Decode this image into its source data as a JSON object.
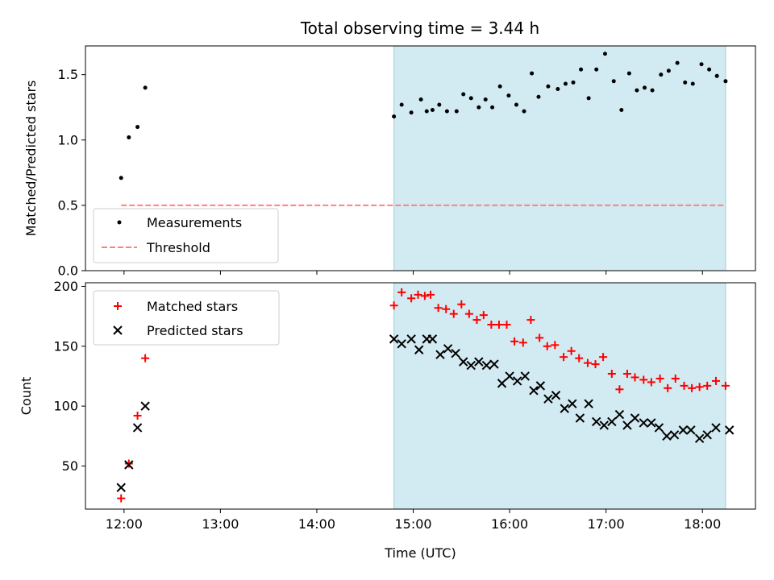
{
  "chart_data": {
    "title": "Total observing time = 3.44 h",
    "xlabel": "Time (UTC)",
    "x_unit": "hours UTC",
    "x_ticks": [
      12,
      13,
      14,
      15,
      16,
      17,
      18
    ],
    "x_tick_labels": [
      "12:00",
      "13:00",
      "14:00",
      "15:00",
      "16:00",
      "17:00",
      "18:00"
    ],
    "xlim": [
      11.6,
      18.55
    ],
    "shaded_interval": [
      14.8,
      18.24
    ],
    "shade_color": "#add8e6",
    "panels": [
      {
        "type": "scatter",
        "ylabel": "Matched/Predicted stars",
        "ylim": [
          0,
          1.72
        ],
        "y_ticks": [
          0.0,
          0.5,
          1.0,
          1.5
        ],
        "y_tick_labels": [
          "0.0",
          "0.5",
          "1.0",
          "1.5"
        ],
        "legend_position": "lower-left",
        "threshold": {
          "name": "Threshold",
          "y": 0.5,
          "x_start": 11.97,
          "x_end": 18.24,
          "color": "#ff8080",
          "style": "dashed"
        },
        "series": [
          {
            "name": "Measurements",
            "marker": "dot",
            "color": "#000000",
            "points": [
              [
                11.97,
                0.71
              ],
              [
                12.05,
                1.02
              ],
              [
                12.14,
                1.1
              ],
              [
                12.22,
                1.4
              ],
              [
                14.8,
                1.18
              ],
              [
                14.88,
                1.27
              ],
              [
                14.98,
                1.21
              ],
              [
                15.08,
                1.31
              ],
              [
                15.14,
                1.22
              ],
              [
                15.2,
                1.23
              ],
              [
                15.27,
                1.27
              ],
              [
                15.35,
                1.22
              ],
              [
                15.45,
                1.22
              ],
              [
                15.52,
                1.35
              ],
              [
                15.6,
                1.32
              ],
              [
                15.68,
                1.25
              ],
              [
                15.75,
                1.31
              ],
              [
                15.82,
                1.25
              ],
              [
                15.9,
                1.41
              ],
              [
                15.99,
                1.34
              ],
              [
                16.07,
                1.27
              ],
              [
                16.15,
                1.22
              ],
              [
                16.23,
                1.51
              ],
              [
                16.3,
                1.33
              ],
              [
                16.4,
                1.41
              ],
              [
                16.5,
                1.39
              ],
              [
                16.58,
                1.43
              ],
              [
                16.66,
                1.44
              ],
              [
                16.74,
                1.54
              ],
              [
                16.82,
                1.32
              ],
              [
                16.9,
                1.54
              ],
              [
                16.99,
                1.66
              ],
              [
                17.08,
                1.45
              ],
              [
                17.16,
                1.23
              ],
              [
                17.24,
                1.51
              ],
              [
                17.32,
                1.38
              ],
              [
                17.4,
                1.4
              ],
              [
                17.48,
                1.38
              ],
              [
                17.57,
                1.5
              ],
              [
                17.65,
                1.53
              ],
              [
                17.74,
                1.59
              ],
              [
                17.82,
                1.44
              ],
              [
                17.9,
                1.43
              ],
              [
                17.99,
                1.58
              ],
              [
                18.07,
                1.54
              ],
              [
                18.15,
                1.49
              ],
              [
                18.24,
                1.45
              ]
            ]
          }
        ]
      },
      {
        "type": "scatter",
        "ylabel": "Count",
        "ylim": [
          14,
          203
        ],
        "y_ticks": [
          50,
          100,
          150,
          200
        ],
        "y_tick_labels": [
          "50",
          "100",
          "150",
          "200"
        ],
        "legend_position": "upper-left",
        "series": [
          {
            "name": "Matched stars",
            "marker": "plus",
            "color": "#ff0000",
            "points": [
              [
                11.97,
                23
              ],
              [
                12.05,
                52
              ],
              [
                12.14,
                92
              ],
              [
                12.22,
                140
              ],
              [
                14.8,
                184
              ],
              [
                14.88,
                195
              ],
              [
                14.98,
                190
              ],
              [
                15.05,
                193
              ],
              [
                15.12,
                192
              ],
              [
                15.18,
                193
              ],
              [
                15.26,
                182
              ],
              [
                15.34,
                181
              ],
              [
                15.42,
                177
              ],
              [
                15.5,
                185
              ],
              [
                15.58,
                177
              ],
              [
                15.66,
                172
              ],
              [
                15.73,
                176
              ],
              [
                15.81,
                168
              ],
              [
                15.89,
                168
              ],
              [
                15.97,
                168
              ],
              [
                16.05,
                154
              ],
              [
                16.14,
                153
              ],
              [
                16.22,
                172
              ],
              [
                16.31,
                157
              ],
              [
                16.39,
                150
              ],
              [
                16.47,
                151
              ],
              [
                16.56,
                141
              ],
              [
                16.64,
                146
              ],
              [
                16.72,
                140
              ],
              [
                16.81,
                136
              ],
              [
                16.89,
                135
              ],
              [
                16.97,
                141
              ],
              [
                17.06,
                127
              ],
              [
                17.14,
                114
              ],
              [
                17.22,
                127
              ],
              [
                17.3,
                124
              ],
              [
                17.39,
                122
              ],
              [
                17.47,
                120
              ],
              [
                17.56,
                123
              ],
              [
                17.64,
                115
              ],
              [
                17.72,
                123
              ],
              [
                17.81,
                117
              ],
              [
                17.89,
                115
              ],
              [
                17.97,
                116
              ],
              [
                18.05,
                117
              ],
              [
                18.14,
                121
              ],
              [
                18.24,
                117
              ]
            ]
          },
          {
            "name": "Predicted stars",
            "marker": "x",
            "color": "#000000",
            "points": [
              [
                11.97,
                32
              ],
              [
                12.05,
                51
              ],
              [
                12.14,
                82
              ],
              [
                12.22,
                100
              ],
              [
                14.8,
                156
              ],
              [
                14.88,
                152
              ],
              [
                14.98,
                156
              ],
              [
                15.06,
                147
              ],
              [
                15.14,
                156
              ],
              [
                15.2,
                156
              ],
              [
                15.28,
                143
              ],
              [
                15.36,
                148
              ],
              [
                15.44,
                144
              ],
              [
                15.52,
                137
              ],
              [
                15.6,
                134
              ],
              [
                15.68,
                137
              ],
              [
                15.76,
                134
              ],
              [
                15.84,
                135
              ],
              [
                15.92,
                119
              ],
              [
                16.0,
                125
              ],
              [
                16.08,
                121
              ],
              [
                16.16,
                125
              ],
              [
                16.25,
                113
              ],
              [
                16.32,
                117
              ],
              [
                16.4,
                106
              ],
              [
                16.48,
                109
              ],
              [
                16.57,
                98
              ],
              [
                16.65,
                102
              ],
              [
                16.73,
                90
              ],
              [
                16.82,
                102
              ],
              [
                16.9,
                87
              ],
              [
                16.98,
                84
              ],
              [
                17.06,
                87
              ],
              [
                17.14,
                93
              ],
              [
                17.22,
                84
              ],
              [
                17.3,
                90
              ],
              [
                17.39,
                86
              ],
              [
                17.47,
                86
              ],
              [
                17.55,
                82
              ],
              [
                17.63,
                75
              ],
              [
                17.71,
                76
              ],
              [
                17.8,
                80
              ],
              [
                17.88,
                80
              ],
              [
                17.97,
                73
              ],
              [
                18.05,
                76
              ],
              [
                18.14,
                82
              ],
              [
                18.28,
                80
              ]
            ]
          }
        ]
      }
    ]
  }
}
